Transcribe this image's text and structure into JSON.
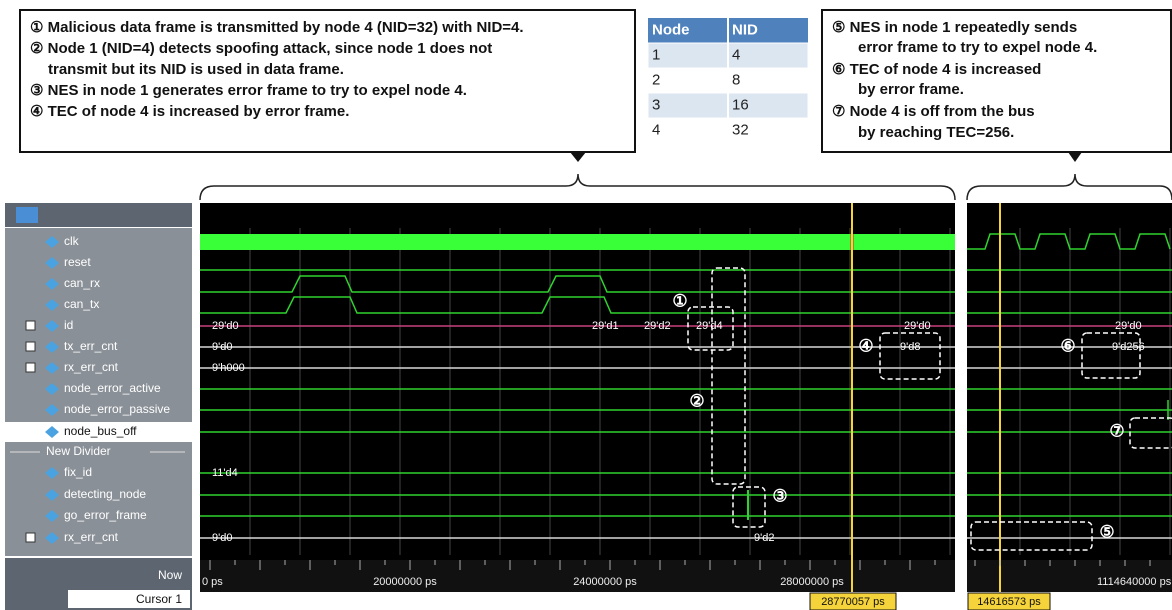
{
  "callouts": {
    "left": [
      "① Malicious data frame is transmitted by node 4 (NID=32) with NID=4.",
      "② Node 1 (NID=4) detects spoofing attack, since node 1 does not",
      "transmit but its NID is used in data frame.",
      "③ NES in node 1 generates error frame to try to expel node 4.",
      "④ TEC of node 4 is increased by error frame."
    ],
    "right": [
      "⑤ NES in node 1 repeatedly sends",
      "error frame to try to expel node 4.",
      "⑥ TEC of node 4 is increased",
      "by error frame.",
      "⑦ Node 4 is off from the bus",
      "by reaching TEC=256."
    ]
  },
  "table": {
    "header": [
      "Node",
      "NID"
    ],
    "rows": [
      [
        1,
        4
      ],
      [
        2,
        8
      ],
      [
        3,
        16
      ],
      [
        4,
        32
      ]
    ]
  },
  "waveform": {
    "signals": [
      "clk",
      "reset",
      "can_rx",
      "can_tx",
      "id",
      "tx_err_cnt",
      "rx_err_cnt",
      "node_error_active",
      "node_error_passive",
      "node_bus_off",
      "New Divider",
      "fix_id",
      "detecting_node",
      "go_error_frame",
      "rx_err_cnt"
    ],
    "now_label": "Now",
    "cursor_label": "Cursor 1",
    "left_pane": {
      "initial_values": [
        "29'd0",
        "9'd0",
        "9'h000",
        "11'd4",
        "9'd0"
      ],
      "id_values": [
        "29'd1",
        "29'd2",
        "29'd4",
        "29'd0"
      ],
      "tx_err_value": "9'd8",
      "rx_err_value": "9'd2",
      "time_ticks": [
        "0 ps",
        "20000000 ps",
        "24000000 ps",
        "28000000 ps"
      ],
      "cursor_time": "28770057 ps"
    },
    "right_pane": {
      "id_value": "29'd0",
      "tx_err_value": "9'd256",
      "time_tick": "1114640000 ps",
      "cursor_time": "14616573 ps"
    },
    "markers": [
      "①",
      "②",
      "③",
      "④",
      "⑤",
      "⑥",
      "⑦"
    ]
  }
}
